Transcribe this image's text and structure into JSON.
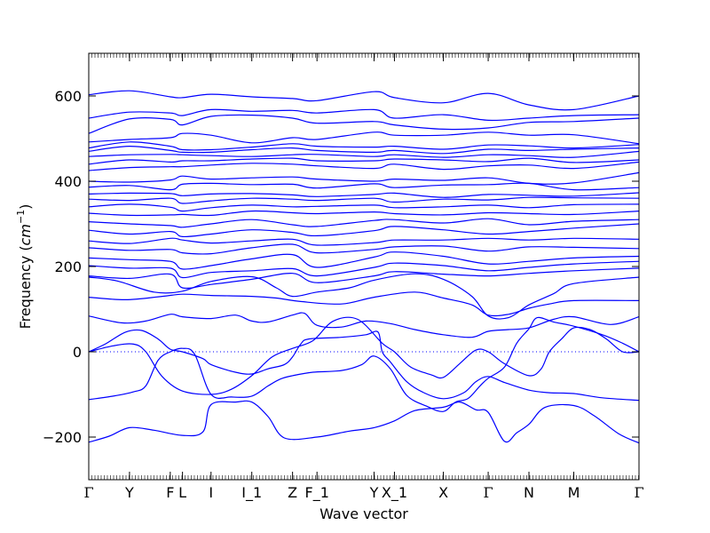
{
  "chart_data": {
    "type": "line",
    "title": "",
    "xlabel": "Wave vector",
    "ylabel": "Frequency (cm⁻¹)",
    "ylabel_main": "Frequency (",
    "ylabel_unit": "cm",
    "ylabel_exp": "−1",
    "ylabel_close": ")",
    "ylim": [
      -300,
      700
    ],
    "yticks": [
      -200,
      0,
      200,
      400,
      600
    ],
    "grid": false,
    "zero_line": true,
    "line_color": "#0000ff",
    "zero_line_color": "#0000ff",
    "path_points": [
      "Γ",
      "Y",
      "F",
      "L",
      "I",
      "I_1",
      "Z",
      "F_1",
      "Y",
      "X_1",
      "X",
      "Γ",
      "N",
      "M",
      "Γ"
    ],
    "path_positions": [
      0,
      1,
      2,
      2.3,
      3,
      4,
      5,
      5.6,
      7,
      7.5,
      8.7,
      9.8,
      10.8,
      11.9,
      13.5
    ],
    "flat_bands": [
      [
        603,
        612,
        598,
        596,
        604,
        598,
        594,
        589,
        610,
        596,
        584,
        606,
        579,
        568,
        600
      ],
      [
        548,
        562,
        560,
        554,
        568,
        564,
        566,
        560,
        568,
        548,
        556,
        543,
        548,
        554,
        556
      ],
      [
        512,
        546,
        545,
        532,
        552,
        555,
        548,
        536,
        540,
        532,
        522,
        525,
        538,
        540,
        548
      ],
      [
        492,
        498,
        502,
        512,
        508,
        490,
        502,
        498,
        515,
        508,
        508,
        515,
        508,
        509,
        488
      ],
      [
        478,
        492,
        482,
        474,
        474,
        480,
        488,
        482,
        480,
        482,
        475,
        485,
        483,
        478,
        486
      ],
      [
        470,
        482,
        472,
        468,
        468,
        474,
        478,
        472,
        468,
        472,
        465,
        475,
        472,
        475,
        478
      ],
      [
        458,
        462,
        463,
        462,
        460,
        458,
        462,
        463,
        458,
        462,
        456,
        462,
        460,
        456,
        470
      ],
      [
        440,
        450,
        445,
        448,
        448,
        452,
        454,
        448,
        448,
        452,
        450,
        446,
        454,
        444,
        450
      ],
      [
        425,
        432,
        434,
        434,
        438,
        442,
        440,
        436,
        430,
        440,
        428,
        436,
        438,
        430,
        445
      ],
      [
        400,
        398,
        403,
        412,
        405,
        408,
        410,
        405,
        400,
        405,
        402,
        408,
        395,
        396,
        420
      ],
      [
        386,
        390,
        380,
        393,
        395,
        392,
        393,
        384,
        394,
        385,
        391,
        392,
        395,
        380,
        385
      ],
      [
        370,
        372,
        371,
        366,
        370,
        371,
        368,
        364,
        369,
        372,
        362,
        369,
        367,
        365,
        373
      ],
      [
        358,
        355,
        360,
        348,
        354,
        360,
        358,
        355,
        360,
        351,
        358,
        356,
        362,
        361,
        360
      ],
      [
        340,
        346,
        339,
        330,
        338,
        344,
        340,
        341,
        344,
        338,
        340,
        344,
        338,
        345,
        346
      ],
      [
        325,
        320,
        321,
        322,
        320,
        330,
        326,
        324,
        328,
        324,
        321,
        326,
        324,
        322,
        330
      ],
      [
        305,
        300,
        296,
        292,
        300,
        310,
        298,
        294,
        308,
        310,
        302,
        312,
        298,
        306,
        310
      ],
      [
        285,
        276,
        282,
        270,
        276,
        286,
        280,
        272,
        284,
        294,
        286,
        276,
        282,
        290,
        300
      ],
      [
        260,
        254,
        266,
        262,
        255,
        260,
        264,
        250,
        256,
        262,
        262,
        266,
        262,
        266,
        264
      ],
      [
        244,
        238,
        240,
        232,
        230,
        244,
        252,
        232,
        240,
        246,
        248,
        236,
        246,
        245,
        242
      ],
      [
        220,
        216,
        212,
        194,
        202,
        218,
        228,
        198,
        222,
        234,
        224,
        206,
        212,
        220,
        224
      ],
      [
        202,
        196,
        196,
        174,
        186,
        190,
        195,
        178,
        198,
        208,
        202,
        190,
        198,
        206,
        212
      ],
      [
        178,
        172,
        182,
        150,
        158,
        170,
        184,
        162,
        178,
        188,
        182,
        178,
        184,
        190,
        196
      ]
    ],
    "curved_bands": [
      [
        [
          0,
          175
        ],
        [
          0.7,
          166
        ],
        [
          1.6,
          140
        ],
        [
          2.3,
          142
        ],
        [
          3,
          165
        ],
        [
          4,
          176
        ],
        [
          4.6,
          150
        ],
        [
          5,
          130
        ],
        [
          5.6,
          140
        ],
        [
          6.4,
          150
        ],
        [
          7,
          168
        ],
        [
          8,
          183
        ],
        [
          8.7,
          170
        ],
        [
          9.4,
          130
        ],
        [
          9.8,
          84
        ],
        [
          10.3,
          80
        ],
        [
          10.8,
          110
        ],
        [
          11.4,
          136
        ],
        [
          11.9,
          160
        ],
        [
          13.5,
          175
        ]
      ],
      [
        [
          0,
          128
        ],
        [
          0.9,
          122
        ],
        [
          1.8,
          130
        ],
        [
          2.3,
          135
        ],
        [
          3,
          132
        ],
        [
          4,
          130
        ],
        [
          4.6,
          126
        ],
        [
          5.2,
          118
        ],
        [
          6.2,
          112
        ],
        [
          7,
          128
        ],
        [
          8,
          140
        ],
        [
          8.7,
          126
        ],
        [
          9.4,
          110
        ],
        [
          9.8,
          86
        ],
        [
          10.3,
          88
        ],
        [
          10.8,
          102
        ],
        [
          11.3,
          112
        ],
        [
          11.9,
          120
        ],
        [
          13.5,
          120
        ]
      ],
      [
        [
          0,
          84
        ],
        [
          0.8,
          68
        ],
        [
          1.4,
          72
        ],
        [
          2,
          88
        ],
        [
          2.3,
          82
        ],
        [
          3,
          78
        ],
        [
          3.6,
          86
        ],
        [
          4,
          72
        ],
        [
          4.4,
          70
        ],
        [
          5,
          86
        ],
        [
          5.3,
          90
        ],
        [
          5.6,
          62
        ],
        [
          6.2,
          58
        ],
        [
          6.8,
          72
        ],
        [
          7.4,
          66
        ],
        [
          8,
          52
        ],
        [
          8.7,
          40
        ],
        [
          9.4,
          34
        ],
        [
          9.8,
          48
        ],
        [
          10.3,
          52
        ],
        [
          10.8,
          56
        ],
        [
          11.4,
          76
        ],
        [
          11.9,
          82
        ],
        [
          12.8,
          64
        ],
        [
          13.5,
          82
        ]
      ],
      [
        [
          0,
          0
        ],
        [
          0.4,
          18
        ],
        [
          0.9,
          46
        ],
        [
          1.3,
          50
        ],
        [
          1.7,
          30
        ],
        [
          2,
          6
        ],
        [
          2.3,
          0
        ],
        [
          2.8,
          -16
        ],
        [
          3,
          -30
        ],
        [
          3.6,
          -48
        ],
        [
          4,
          -52
        ],
        [
          4.4,
          -40
        ],
        [
          4.8,
          -30
        ],
        [
          5,
          -12
        ],
        [
          5.2,
          18
        ],
        [
          5.4,
          30
        ],
        [
          6.2,
          34
        ],
        [
          6.8,
          40
        ],
        [
          7.1,
          46
        ],
        [
          7.2,
          0
        ],
        [
          7.4,
          -24
        ],
        [
          7.8,
          -70
        ],
        [
          8.2,
          -95
        ],
        [
          8.7,
          -110
        ],
        [
          9.2,
          -96
        ],
        [
          9.5,
          -70
        ],
        [
          9.8,
          -58
        ],
        [
          10.2,
          -72
        ],
        [
          10.8,
          -90
        ],
        [
          11.3,
          -96
        ],
        [
          11.9,
          -98
        ],
        [
          12.6,
          -108
        ],
        [
          13.5,
          -114
        ]
      ],
      [
        [
          0,
          0
        ],
        [
          0.6,
          14
        ],
        [
          1.1,
          18
        ],
        [
          1.4,
          0
        ],
        [
          1.8,
          -58
        ],
        [
          2.3,
          -92
        ],
        [
          3,
          -100
        ],
        [
          3.5,
          -88
        ],
        [
          4,
          -56
        ],
        [
          4.5,
          -12
        ],
        [
          5,
          8
        ],
        [
          5.5,
          26
        ],
        [
          6,
          72
        ],
        [
          6.6,
          76
        ],
        [
          7.2,
          20
        ],
        [
          7.5,
          0
        ],
        [
          7.9,
          -36
        ],
        [
          8.4,
          -54
        ],
        [
          8.7,
          -60
        ],
        [
          9.1,
          -28
        ],
        [
          9.5,
          4
        ],
        [
          9.8,
          0
        ],
        [
          10.2,
          -28
        ],
        [
          10.8,
          -56
        ],
        [
          11.1,
          -40
        ],
        [
          11.3,
          0
        ],
        [
          11.6,
          30
        ],
        [
          11.9,
          56
        ],
        [
          12.3,
          52
        ],
        [
          12.7,
          30
        ],
        [
          13.1,
          0
        ],
        [
          13.5,
          0
        ]
      ],
      [
        [
          0,
          -112
        ],
        [
          0.6,
          -104
        ],
        [
          1.1,
          -94
        ],
        [
          1.4,
          -80
        ],
        [
          1.7,
          -20
        ],
        [
          2,
          0
        ],
        [
          2.3,
          8
        ],
        [
          2.6,
          -6
        ],
        [
          3,
          -100
        ],
        [
          3.5,
          -106
        ],
        [
          4,
          -104
        ],
        [
          4.4,
          -80
        ],
        [
          4.7,
          -64
        ],
        [
          5,
          -56
        ],
        [
          5.5,
          -48
        ],
        [
          6.2,
          -44
        ],
        [
          6.7,
          -30
        ],
        [
          7,
          -10
        ],
        [
          7.4,
          -40
        ],
        [
          7.8,
          -102
        ],
        [
          8.3,
          -128
        ],
        [
          8.7,
          -140
        ],
        [
          9,
          -118
        ],
        [
          9.3,
          -110
        ],
        [
          9.6,
          -80
        ],
        [
          9.8,
          -62
        ],
        [
          10.2,
          -36
        ],
        [
          10.5,
          20
        ],
        [
          10.8,
          54
        ],
        [
          11,
          80
        ],
        [
          11.4,
          70
        ],
        [
          11.9,
          60
        ],
        [
          12.6,
          40
        ],
        [
          13.1,
          20
        ],
        [
          13.5,
          0
        ]
      ],
      [
        [
          0,
          -212
        ],
        [
          0.5,
          -198
        ],
        [
          1,
          -178
        ],
        [
          1.6,
          -184
        ],
        [
          2.3,
          -196
        ],
        [
          2.8,
          -188
        ],
        [
          3,
          -124
        ],
        [
          3.6,
          -118
        ],
        [
          4,
          -118
        ],
        [
          4.4,
          -152
        ],
        [
          4.8,
          -202
        ],
        [
          5.6,
          -200
        ],
        [
          6.4,
          -186
        ],
        [
          7,
          -178
        ],
        [
          7.5,
          -162
        ],
        [
          8,
          -138
        ],
        [
          8.7,
          -130
        ],
        [
          9.1,
          -118
        ],
        [
          9.5,
          -136
        ],
        [
          9.8,
          -142
        ],
        [
          10.2,
          -210
        ],
        [
          10.5,
          -190
        ],
        [
          10.8,
          -170
        ],
        [
          11.2,
          -130
        ],
        [
          11.9,
          -126
        ],
        [
          12.4,
          -150
        ],
        [
          13,
          -192
        ],
        [
          13.5,
          -214
        ]
      ]
    ]
  }
}
